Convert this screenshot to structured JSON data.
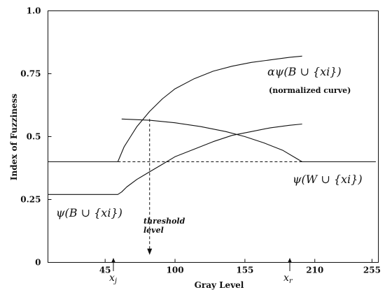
{
  "chart_data": {
    "type": "line",
    "xlabel": "Gray Level",
    "ylabel": "Index of Fuzziness",
    "xlim": [
      0,
      260
    ],
    "ylim": [
      0,
      1.0
    ],
    "x_ticks": [
      {
        "value": 45,
        "label": "45"
      },
      {
        "value": 100,
        "label": "100"
      },
      {
        "value": 155,
        "label": "155"
      },
      {
        "value": 210,
        "label": "210"
      },
      {
        "value": 255,
        "label": "255"
      }
    ],
    "y_ticks": [
      {
        "value": 0,
        "label": "0"
      },
      {
        "value": 0.25,
        "label": "0.25"
      },
      {
        "value": 0.5,
        "label": "0.5"
      },
      {
        "value": 0.75,
        "label": "0.75"
      },
      {
        "value": 1.0,
        "label": "1.0"
      }
    ],
    "series": [
      {
        "name": "ψ(B ∪ {xi})",
        "x": [
          0,
          55,
          58,
          62,
          70,
          80,
          90,
          100,
          115,
          130,
          145,
          160,
          175,
          190,
          200
        ],
        "y": [
          0.27,
          0.27,
          0.28,
          0.3,
          0.33,
          0.36,
          0.39,
          0.42,
          0.45,
          0.48,
          0.505,
          0.52,
          0.535,
          0.545,
          0.55
        ]
      },
      {
        "name": "αψ(B ∪ {xi})",
        "x": [
          55,
          60,
          65,
          70,
          80,
          90,
          100,
          115,
          130,
          145,
          160,
          175,
          190,
          200
        ],
        "y": [
          0.4,
          0.46,
          0.5,
          0.54,
          0.6,
          0.65,
          0.69,
          0.73,
          0.76,
          0.78,
          0.795,
          0.805,
          0.815,
          0.82
        ]
      },
      {
        "name": "ψ(W ∪ {xi})",
        "x": [
          58,
          80,
          100,
          120,
          140,
          155,
          170,
          185,
          195,
          200,
          210,
          225,
          240,
          258
        ],
        "y": [
          0.57,
          0.565,
          0.555,
          0.54,
          0.52,
          0.5,
          0.475,
          0.445,
          0.415,
          0.4,
          0.4,
          0.4,
          0.4,
          0.4
        ]
      },
      {
        "name": "",
        "x": [
          0,
          55
        ],
        "y": [
          0.4,
          0.4
        ]
      }
    ],
    "guides": [
      {
        "kind": "hline-dashed",
        "x": [
          55,
          200
        ],
        "y": 0.4
      },
      {
        "kind": "vline-dashed",
        "x": 80,
        "y": [
          0.57,
          0.03
        ]
      }
    ],
    "axis_markers": [
      {
        "x": 55,
        "label": "x_j"
      },
      {
        "x": 200,
        "label": "x_r"
      }
    ],
    "annotations": {
      "alpha_label": "αψ(B ∪ {xi})",
      "normalized_note": "(normalized curve)",
      "w_label": "ψ(W ∪ {xi})",
      "b_label": "ψ(B ∪ {xi})",
      "threshold_line1": "threshold",
      "threshold_line2": "level"
    }
  }
}
